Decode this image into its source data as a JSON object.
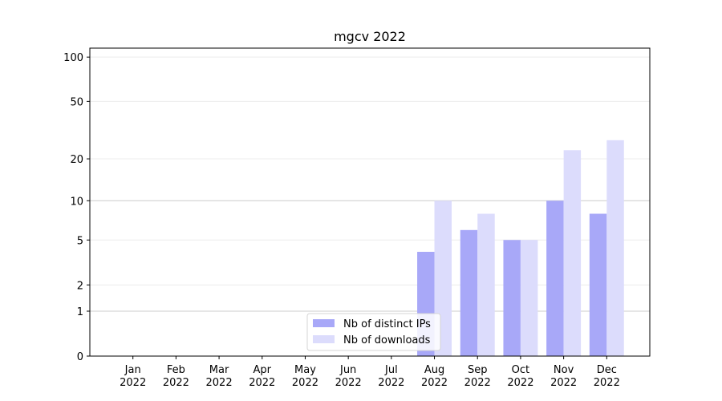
{
  "chart_data": {
    "type": "bar",
    "title": "mgcv 2022",
    "categories": [
      "Jan\n2022",
      "Feb\n2022",
      "Mar\n2022",
      "Apr\n2022",
      "May\n2022",
      "Jun\n2022",
      "Jul\n2022",
      "Aug\n2022",
      "Sep\n2022",
      "Oct\n2022",
      "Nov\n2022",
      "Dec\n2022"
    ],
    "series": [
      {
        "name": "Nb of distinct IPs",
        "color": "#a8a8f8",
        "values": [
          0,
          0,
          0,
          0,
          0,
          0,
          0,
          4,
          6,
          5,
          10,
          8
        ]
      },
      {
        "name": "Nb of downloads",
        "color": "#dcdcfc",
        "values": [
          0,
          0,
          0,
          0,
          0,
          0,
          0,
          10,
          8,
          5,
          23,
          27
        ]
      }
    ],
    "yscale": "log1p",
    "ylim": [
      0,
      115
    ],
    "yticks": [
      0,
      1,
      2,
      5,
      10,
      20,
      50,
      100
    ],
    "grid": true,
    "legend": "lower center"
  }
}
